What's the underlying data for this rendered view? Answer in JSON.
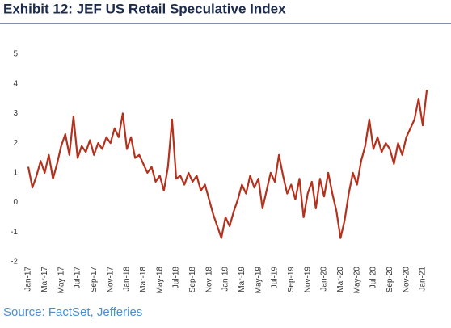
{
  "chart_data": {
    "type": "line",
    "title": "Exhibit 12: JEF US Retail Speculative Index",
    "source": "Source: FactSet, Jefferies",
    "categories": [
      "Jan-17",
      null,
      null,
      null,
      "Mar-17",
      null,
      null,
      null,
      "May-17",
      null,
      null,
      null,
      "Jul-17",
      null,
      null,
      null,
      "Sep-17",
      null,
      null,
      null,
      "Nov-17",
      null,
      null,
      null,
      "Jan-18",
      null,
      null,
      null,
      "Mar-18",
      null,
      null,
      null,
      "May-18",
      null,
      null,
      null,
      "Jul-18",
      null,
      null,
      null,
      "Sep-18",
      null,
      null,
      null,
      "Nov-18",
      null,
      null,
      null,
      "Jan-19",
      null,
      null,
      null,
      "Mar-19",
      null,
      null,
      null,
      "May-19",
      null,
      null,
      null,
      "Jul-19",
      null,
      null,
      null,
      "Sep-19",
      null,
      null,
      null,
      "Nov-19",
      null,
      null,
      null,
      "Jan-20",
      null,
      null,
      null,
      "Mar-20",
      null,
      null,
      null,
      "May-20",
      null,
      null,
      null,
      "Jul-20",
      null,
      null,
      null,
      "Sep-20",
      null,
      null,
      null,
      "Nov-20",
      null,
      null,
      null,
      "Jan-21",
      null
    ],
    "series": [
      {
        "name": "JEF US Retail Speculative Index",
        "color": "#b3311d",
        "values": [
          1.2,
          0.5,
          0.9,
          1.4,
          1.0,
          1.6,
          0.8,
          1.3,
          1.9,
          2.3,
          1.6,
          2.9,
          1.5,
          1.9,
          1.7,
          2.1,
          1.6,
          2.0,
          1.8,
          2.2,
          2.0,
          2.5,
          2.2,
          3.0,
          1.8,
          2.2,
          1.5,
          1.6,
          1.3,
          1.0,
          1.2,
          0.7,
          0.9,
          0.4,
          1.2,
          2.8,
          0.8,
          0.9,
          0.6,
          1.0,
          0.7,
          0.9,
          0.4,
          0.6,
          0.1,
          -0.4,
          -0.8,
          -1.2,
          -0.5,
          -0.8,
          -0.3,
          0.1,
          0.6,
          0.3,
          0.9,
          0.5,
          0.8,
          -0.2,
          0.4,
          1.0,
          0.7,
          1.6,
          0.9,
          0.3,
          0.6,
          0.1,
          0.8,
          -0.5,
          0.3,
          0.7,
          -0.2,
          0.8,
          0.2,
          1.0,
          0.3,
          -0.3,
          -1.2,
          -0.6,
          0.3,
          1.0,
          0.6,
          1.4,
          1.9,
          2.8,
          1.8,
          2.2,
          1.7,
          2.0,
          1.8,
          1.3,
          2.0,
          1.6,
          2.2,
          2.5,
          2.8,
          3.5,
          2.6,
          3.8
        ]
      }
    ],
    "ylim": [
      -2,
      5
    ],
    "yticks": [
      -2,
      -1,
      0,
      1,
      2,
      3,
      4,
      5
    ]
  }
}
